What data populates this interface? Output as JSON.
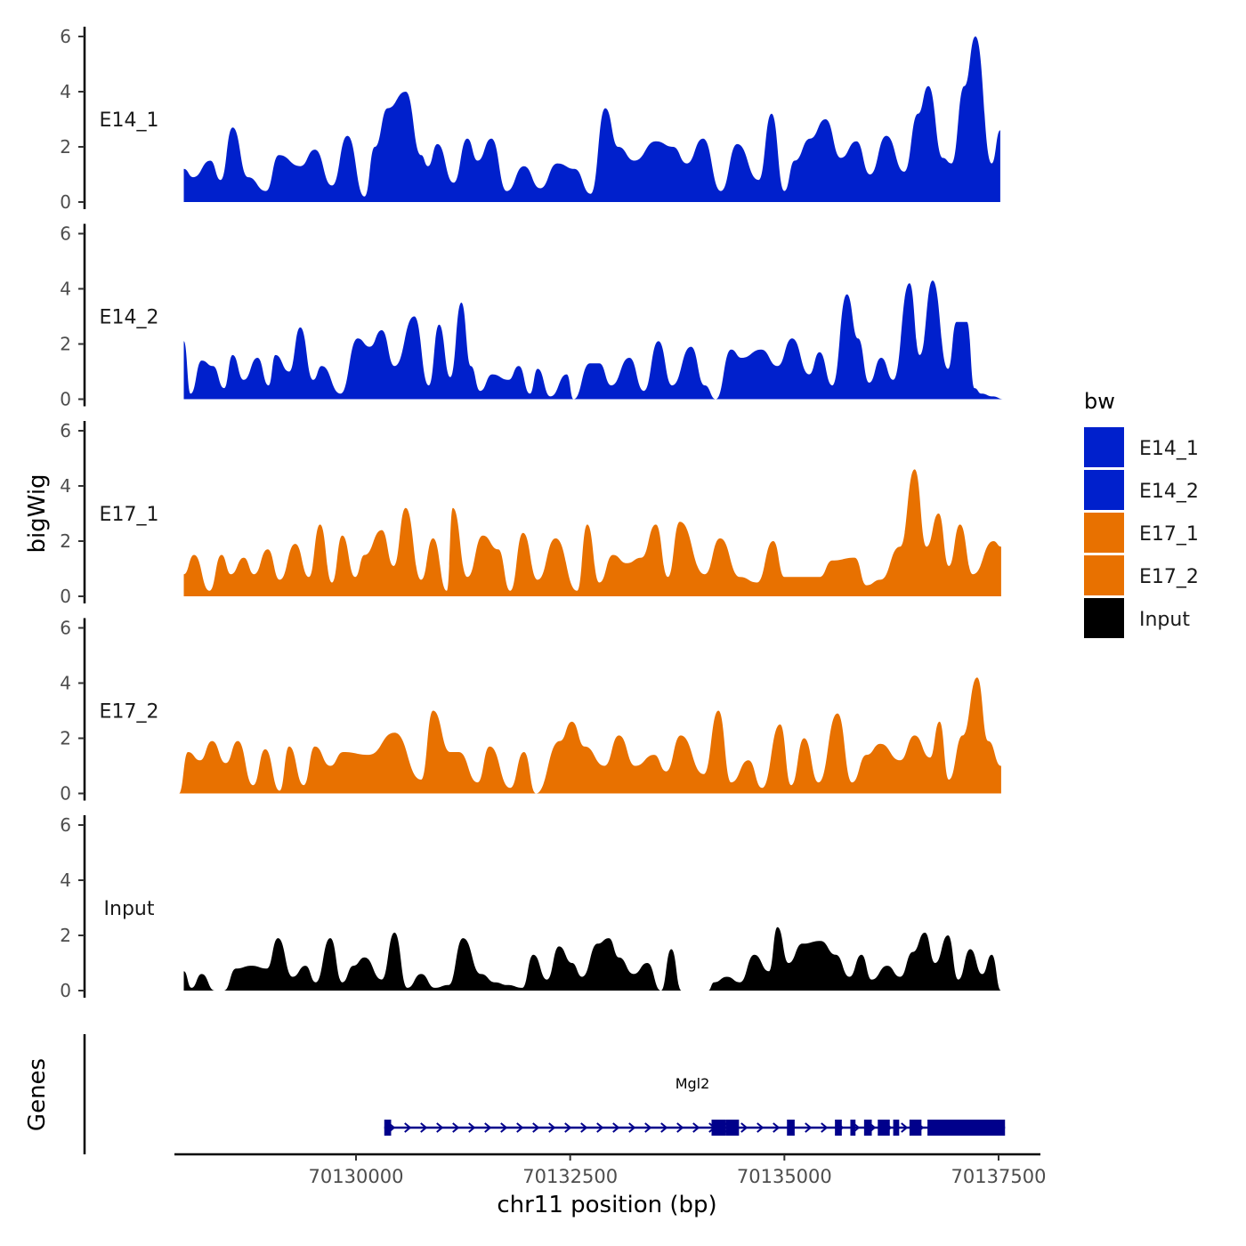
{
  "chart_data": {
    "type": "area",
    "title": "",
    "ylabel": "bigWig",
    "gene_track_label": "Genes",
    "xlabel": "chr11 position (bp)",
    "x_ticks": [
      70130000,
      70132500,
      70135000,
      70137500
    ],
    "x_tick_labels": [
      "70130000",
      "70132500",
      "70135000",
      "70137500"
    ],
    "xlim": [
      70127933,
      70137850
    ],
    "ylim": [
      0,
      6.3
    ],
    "y_ticks": [
      0,
      2,
      4,
      6
    ],
    "y_tick_labels": [
      "0",
      "2",
      "4",
      "6"
    ],
    "legend": {
      "title": "bw",
      "position": "right",
      "entries": [
        {
          "label": "E14_1",
          "color": "#0020CC"
        },
        {
          "label": "E14_2",
          "color": "#0020CC"
        },
        {
          "label": "E17_1",
          "color": "#E87100"
        },
        {
          "label": "E17_2",
          "color": "#E87100"
        },
        {
          "label": "Input",
          "color": "#000000"
        }
      ]
    },
    "series": [
      {
        "name": "E14_1",
        "color": "#0020CC",
        "x": [
          70127990,
          70128100,
          70128300,
          70128420,
          70128560,
          70128740,
          70128950,
          70129100,
          70129350,
          70129520,
          70129720,
          70129900,
          70130100,
          70130220,
          70130370,
          70130580,
          70130760,
          70130840,
          70130950,
          70131140,
          70131300,
          70131420,
          70131580,
          70131760,
          70131960,
          70132150,
          70132350,
          70132550,
          70132740,
          70132910,
          70133060,
          70133250,
          70133500,
          70133700,
          70133860,
          70134050,
          70134260,
          70134450,
          70134700,
          70134850,
          70135000,
          70135120,
          70135300,
          70135480,
          70135660,
          70135840,
          70136000,
          70136190,
          70136400,
          70136560,
          70136680,
          70136850,
          70136950,
          70137100,
          70137230,
          70137420,
          70137520
        ],
        "values": [
          1.2,
          0.9,
          1.5,
          0.8,
          2.7,
          0.9,
          0.4,
          1.7,
          1.3,
          1.9,
          0.6,
          2.4,
          0.2,
          2.0,
          3.4,
          4.0,
          1.7,
          1.3,
          2.1,
          0.7,
          2.3,
          1.5,
          2.3,
          0.4,
          1.3,
          0.5,
          1.4,
          1.2,
          0.3,
          3.4,
          2.0,
          1.5,
          2.2,
          2.0,
          1.4,
          2.3,
          0.4,
          2.1,
          0.8,
          3.2,
          0.4,
          1.5,
          2.3,
          3.0,
          1.6,
          2.2,
          1.0,
          2.4,
          1.1,
          3.2,
          4.2,
          1.6,
          1.4,
          4.2,
          6.0,
          1.4,
          2.6
        ]
      },
      {
        "name": "E14_2",
        "color": "#0020CC",
        "x": [
          70127990,
          70128070,
          70128200,
          70128330,
          70128460,
          70128560,
          70128690,
          70128850,
          70128980,
          70129060,
          70129220,
          70129350,
          70129500,
          70129600,
          70129820,
          70130020,
          70130160,
          70130300,
          70130450,
          70130680,
          70130850,
          70130970,
          70131100,
          70131230,
          70131340,
          70131450,
          70131590,
          70131780,
          70131900,
          70132030,
          70132120,
          70132270,
          70132460,
          70132540,
          70132730,
          70132840,
          70132980,
          70133190,
          70133360,
          70133530,
          70133690,
          70133910,
          70134070,
          70134200,
          70134380,
          70134500,
          70134730,
          70134920,
          70135090,
          70135290,
          70135410,
          70135560,
          70135730,
          70135860,
          70135990,
          70136130,
          70136270,
          70136460,
          70136580,
          70136730,
          70136910,
          70137010,
          70137130,
          70137220,
          70137300,
          70137430,
          70137560
        ],
        "values": [
          2.1,
          0.2,
          1.4,
          1.2,
          0.4,
          1.6,
          0.7,
          1.5,
          0.5,
          1.6,
          1.0,
          2.6,
          0.7,
          1.2,
          0.2,
          2.2,
          1.9,
          2.5,
          1.2,
          3.0,
          0.5,
          2.7,
          0.8,
          3.5,
          1.2,
          0.3,
          0.9,
          0.7,
          1.2,
          0.2,
          1.1,
          0.1,
          0.9,
          0.0,
          1.3,
          1.3,
          0.5,
          1.5,
          0.3,
          2.1,
          0.5,
          1.9,
          0.5,
          0.0,
          1.8,
          1.5,
          1.8,
          1.2,
          2.2,
          0.9,
          1.7,
          0.5,
          3.8,
          2.2,
          0.6,
          1.5,
          0.7,
          4.2,
          1.6,
          4.3,
          1.1,
          2.8,
          2.8,
          0.4,
          0.2,
          0.1,
          0.0
        ]
      },
      {
        "name": "E17_1",
        "color": "#E87100",
        "x": [
          70127990,
          70128110,
          70128290,
          70128430,
          70128540,
          70128690,
          70128810,
          70128970,
          70129110,
          70129290,
          70129450,
          70129580,
          70129720,
          70129840,
          70129990,
          70130100,
          70130300,
          70130440,
          70130580,
          70130760,
          70130900,
          70131060,
          70131130,
          70131300,
          70131480,
          70131660,
          70131800,
          70131950,
          70132120,
          70132330,
          70132580,
          70132700,
          70132840,
          70133000,
          70133160,
          70133330,
          70133500,
          70133640,
          70133780,
          70134070,
          70134250,
          70134480,
          70134680,
          70134870,
          70135000,
          70135200,
          70135410,
          70135560,
          70135820,
          70135960,
          70136120,
          70136350,
          70136520,
          70136660,
          70136800,
          70136920,
          70137050,
          70137200,
          70137440,
          70137530
        ],
        "values": [
          0.8,
          1.5,
          0.2,
          1.5,
          0.8,
          1.4,
          0.8,
          1.7,
          0.6,
          1.9,
          0.7,
          2.6,
          0.5,
          2.2,
          0.7,
          1.5,
          2.4,
          1.1,
          3.2,
          0.6,
          2.1,
          0.2,
          3.2,
          0.7,
          2.2,
          1.7,
          0.2,
          2.3,
          0.6,
          2.1,
          0.2,
          2.6,
          0.5,
          1.5,
          1.2,
          1.4,
          2.6,
          0.7,
          2.7,
          0.8,
          2.1,
          0.7,
          0.5,
          2.0,
          0.7,
          0.7,
          0.7,
          1.3,
          1.4,
          0.4,
          0.6,
          1.8,
          4.6,
          1.8,
          3.0,
          1.1,
          2.6,
          0.8,
          2.0,
          1.8
        ]
      },
      {
        "name": "E17_2",
        "color": "#E87100",
        "x": [
          70127933,
          70128040,
          70128180,
          70128320,
          70128480,
          70128620,
          70128800,
          70128940,
          70129110,
          70129220,
          70129390,
          70129520,
          70129700,
          70129850,
          70130150,
          70130450,
          70130760,
          70130900,
          70131100,
          70131200,
          70131420,
          70131560,
          70131800,
          70131960,
          70132100,
          70132380,
          70132520,
          70132670,
          70132900,
          70133070,
          70133260,
          70133480,
          70133620,
          70133790,
          70134060,
          70134230,
          70134380,
          70134580,
          70134740,
          70134950,
          70135080,
          70135230,
          70135400,
          70135620,
          70135790,
          70135960,
          70136120,
          70136350,
          70136520,
          70136700,
          70136810,
          70136920,
          70137080,
          70137250,
          70137380,
          70137530
        ],
        "values": [
          0.0,
          1.5,
          1.2,
          1.9,
          1.1,
          1.9,
          0.3,
          1.6,
          0.1,
          1.7,
          0.3,
          1.7,
          1.0,
          1.5,
          1.4,
          2.2,
          0.5,
          3.0,
          1.5,
          1.5,
          0.4,
          1.7,
          0.2,
          1.5,
          0.0,
          1.9,
          2.6,
          1.7,
          1.0,
          2.1,
          1.0,
          1.4,
          0.8,
          2.1,
          0.7,
          3.0,
          0.4,
          1.2,
          0.2,
          2.5,
          0.3,
          2.0,
          0.4,
          2.9,
          0.4,
          1.4,
          1.8,
          1.2,
          2.1,
          1.3,
          2.6,
          0.5,
          2.1,
          4.2,
          1.9,
          1.0
        ]
      },
      {
        "name": "Input",
        "color": "#000000",
        "x": [
          70127990,
          70128080,
          70128200,
          70128350,
          70128460,
          70128600,
          70128780,
          70128960,
          70129090,
          70129260,
          70129410,
          70129530,
          70129700,
          70129840,
          70129970,
          70130100,
          70130300,
          70130450,
          70130600,
          70130760,
          70130920,
          70131080,
          70131250,
          70131460,
          70131620,
          70131770,
          70131940,
          70132070,
          70132230,
          70132370,
          70132520,
          70132640,
          70132820,
          70132950,
          70133070,
          70133240,
          70133400,
          70133560,
          70133680,
          70133800,
          70133950,
          70134110,
          70134180,
          70134330,
          70134480,
          70134650,
          70134820,
          70134920,
          70135050,
          70135210,
          70135420,
          70135600,
          70135760,
          70135900,
          70136020,
          70136200,
          70136350,
          70136500,
          70136640,
          70136760,
          70136910,
          70137030,
          70137170,
          70137310,
          70137420,
          70137530
        ],
        "values": [
          0.7,
          0.1,
          0.6,
          0.0,
          0.0,
          0.8,
          0.9,
          0.8,
          1.9,
          0.5,
          0.9,
          0.3,
          1.9,
          0.3,
          0.9,
          1.2,
          0.4,
          2.1,
          0.1,
          0.6,
          0.1,
          0.2,
          1.9,
          0.6,
          0.3,
          0.2,
          0.1,
          1.3,
          0.4,
          1.6,
          1.0,
          0.5,
          1.7,
          1.9,
          1.2,
          0.6,
          1.0,
          0.0,
          1.5,
          0.0,
          0.0,
          0.0,
          0.3,
          0.5,
          0.3,
          1.3,
          0.7,
          2.3,
          1.0,
          1.7,
          1.8,
          1.3,
          0.5,
          1.3,
          0.4,
          0.9,
          0.5,
          1.4,
          2.1,
          1.0,
          2.0,
          0.4,
          1.5,
          0.6,
          1.3,
          0.0
        ]
      }
    ],
    "gene_track": {
      "gene_name": "Mgl2",
      "strand": "+",
      "color": "#00008B",
      "start": 70130330,
      "end": 70137575,
      "exons": [
        [
          70130330,
          70130410
        ],
        [
          70134150,
          70134320
        ],
        [
          70134320,
          70134470
        ],
        [
          70135030,
          70135120
        ],
        [
          70135590,
          70135670
        ],
        [
          70135770,
          70135830
        ],
        [
          70135930,
          70136020
        ],
        [
          70136090,
          70136230
        ],
        [
          70136270,
          70136340
        ],
        [
          70136460,
          70136600
        ],
        [
          70136670,
          70137575
        ]
      ]
    }
  }
}
